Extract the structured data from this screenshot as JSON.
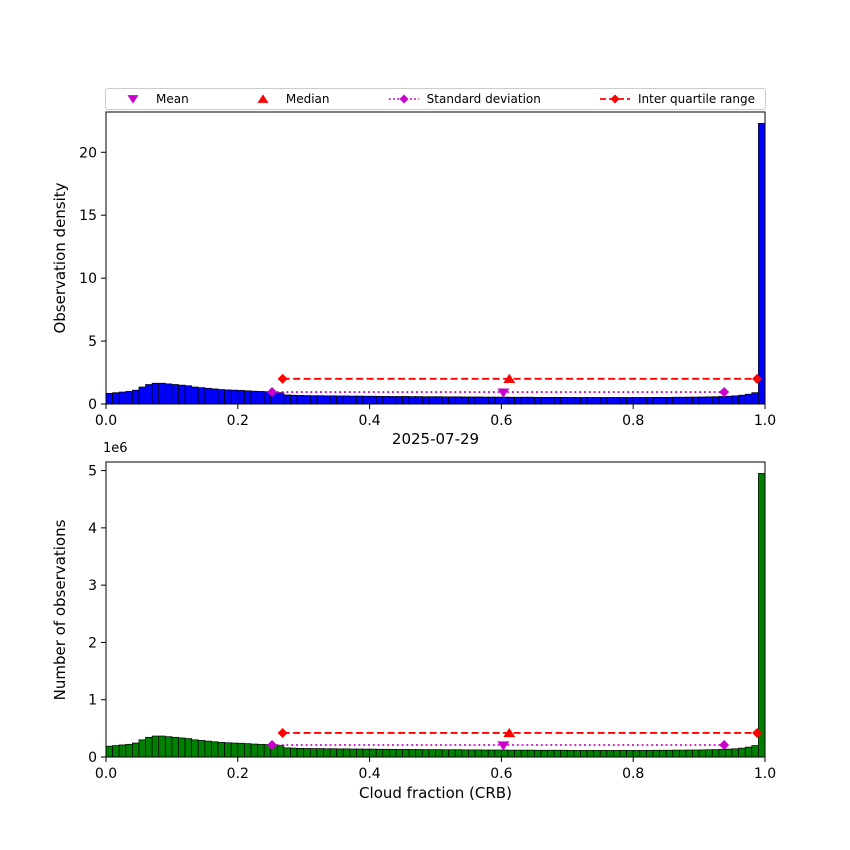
{
  "figure": {
    "background": "#ffffff"
  },
  "legend": {
    "items": [
      {
        "label": "Mean",
        "marker": "triangle-down",
        "color": "#cc00cc"
      },
      {
        "label": "Median",
        "marker": "triangle-up",
        "color": "#ff0000"
      },
      {
        "label": "Standard deviation",
        "marker": "diamond-dotted",
        "color": "#cc00cc"
      },
      {
        "label": "Inter quartile range",
        "marker": "diamond-dashed",
        "color": "#ff0000"
      }
    ]
  },
  "chart_data": [
    {
      "type": "bar",
      "id": "observation-density-histogram",
      "title": "",
      "ylabel": "Observation density",
      "xlabel": "",
      "bar_color": "#0000ff",
      "bar_edge_color": "#000000",
      "bin_start": 0.0,
      "bin_width": 0.01,
      "xlim": [
        0,
        1
      ],
      "ylim": [
        0,
        23.2
      ],
      "xticks": [
        0,
        0.2,
        0.4,
        0.6,
        0.8,
        1
      ],
      "xtick_labels": [
        "0.0",
        "0.2",
        "0.4",
        "0.6",
        "0.8",
        "1.0"
      ],
      "yticks": [
        0,
        5,
        10,
        15,
        20
      ],
      "ytick_labels": [
        "0",
        "5",
        "10",
        "15",
        "20"
      ],
      "values": [
        0.85,
        0.9,
        0.95,
        1.0,
        1.1,
        1.35,
        1.55,
        1.65,
        1.65,
        1.6,
        1.55,
        1.5,
        1.45,
        1.35,
        1.3,
        1.25,
        1.2,
        1.15,
        1.12,
        1.1,
        1.08,
        1.05,
        1.02,
        1.0,
        0.98,
        0.95,
        0.9,
        0.72,
        0.7,
        0.68,
        0.67,
        0.66,
        0.66,
        0.65,
        0.65,
        0.64,
        0.64,
        0.63,
        0.63,
        0.62,
        0.62,
        0.61,
        0.61,
        0.6,
        0.6,
        0.6,
        0.59,
        0.59,
        0.58,
        0.58,
        0.58,
        0.57,
        0.57,
        0.57,
        0.56,
        0.56,
        0.56,
        0.55,
        0.55,
        0.55,
        0.55,
        0.54,
        0.54,
        0.54,
        0.54,
        0.53,
        0.53,
        0.53,
        0.53,
        0.53,
        0.52,
        0.52,
        0.52,
        0.52,
        0.52,
        0.52,
        0.52,
        0.52,
        0.52,
        0.52,
        0.52,
        0.52,
        0.52,
        0.53,
        0.53,
        0.53,
        0.54,
        0.54,
        0.55,
        0.55,
        0.56,
        0.57,
        0.58,
        0.6,
        0.62,
        0.65,
        0.7,
        0.78,
        0.9,
        22.3
      ],
      "annotations": {
        "mean": {
          "x": 0.603,
          "y": 0.9,
          "color": "#cc00cc"
        },
        "median": {
          "x": 0.612,
          "y": 2.0,
          "color": "#ff0000"
        },
        "std": {
          "x_start": 0.252,
          "x_end": 0.938,
          "y": 0.95,
          "color": "#cc00cc"
        },
        "iqr": {
          "x_start": 0.268,
          "x_end": 0.988,
          "y": 2.0,
          "color": "#ff0000"
        }
      }
    },
    {
      "type": "bar",
      "id": "number-of-observations-histogram",
      "title": "2025-07-29",
      "ylabel": "Number of observations",
      "xlabel": "Cloud fraction (CRB)",
      "y_offset_text": "1e6",
      "y_unit_multiplier": 1000000,
      "bar_color": "#008000",
      "bar_edge_color": "#000000",
      "bin_start": 0.0,
      "bin_width": 0.01,
      "xlim": [
        0,
        1
      ],
      "ylim": [
        0,
        5.15
      ],
      "xticks": [
        0,
        0.2,
        0.4,
        0.6,
        0.8,
        1
      ],
      "xtick_labels": [
        "0.0",
        "0.2",
        "0.4",
        "0.6",
        "0.8",
        "1.0"
      ],
      "yticks": [
        0,
        1,
        2,
        3,
        4,
        5
      ],
      "ytick_labels": [
        "0",
        "1",
        "2",
        "3",
        "4",
        "5"
      ],
      "values": [
        0.189,
        0.2,
        0.211,
        0.222,
        0.244,
        0.3,
        0.344,
        0.366,
        0.366,
        0.355,
        0.344,
        0.333,
        0.322,
        0.3,
        0.289,
        0.278,
        0.266,
        0.255,
        0.249,
        0.244,
        0.24,
        0.233,
        0.226,
        0.222,
        0.218,
        0.211,
        0.2,
        0.16,
        0.155,
        0.151,
        0.149,
        0.147,
        0.147,
        0.144,
        0.144,
        0.142,
        0.142,
        0.14,
        0.14,
        0.138,
        0.138,
        0.135,
        0.135,
        0.133,
        0.133,
        0.133,
        0.131,
        0.131,
        0.129,
        0.129,
        0.129,
        0.127,
        0.127,
        0.127,
        0.124,
        0.124,
        0.124,
        0.122,
        0.122,
        0.122,
        0.122,
        0.12,
        0.12,
        0.12,
        0.12,
        0.118,
        0.118,
        0.118,
        0.118,
        0.118,
        0.115,
        0.115,
        0.115,
        0.115,
        0.115,
        0.115,
        0.115,
        0.115,
        0.115,
        0.115,
        0.115,
        0.115,
        0.115,
        0.118,
        0.118,
        0.118,
        0.12,
        0.12,
        0.122,
        0.122,
        0.124,
        0.127,
        0.129,
        0.133,
        0.138,
        0.144,
        0.155,
        0.173,
        0.2,
        4.95
      ],
      "annotations": {
        "mean": {
          "x": 0.603,
          "y": 0.2,
          "color": "#cc00cc"
        },
        "median": {
          "x": 0.612,
          "y": 0.42,
          "color": "#ff0000"
        },
        "std": {
          "x_start": 0.252,
          "x_end": 0.938,
          "y": 0.21,
          "color": "#cc00cc"
        },
        "iqr": {
          "x_start": 0.268,
          "x_end": 0.988,
          "y": 0.42,
          "color": "#ff0000"
        }
      }
    }
  ]
}
